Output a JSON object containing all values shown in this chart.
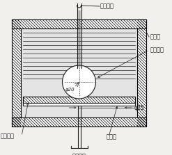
{
  "bg_color": "#f2f0ec",
  "line_color": "#1a1a1a",
  "labels": {
    "lead_top": "リード線",
    "oil_tank": "油そう",
    "sphere_electrode": "球状電極",
    "disk_electrode": "円板電極",
    "test_piece": "試験片",
    "lead_bottom": "リード線",
    "phi20": "φ20",
    "phi25": "φ25"
  },
  "figsize": [
    2.47,
    2.23
  ],
  "dpi": 100
}
